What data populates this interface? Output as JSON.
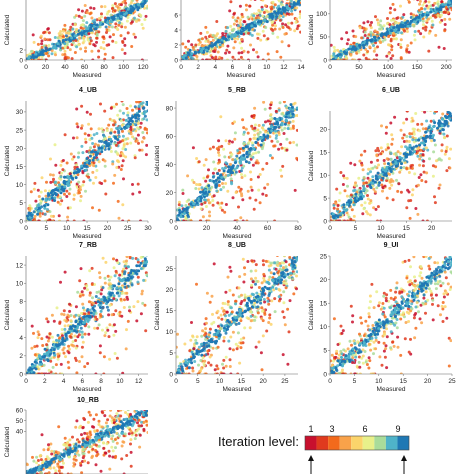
{
  "figure": {
    "colorbar": {
      "title": "Iteration level:",
      "ticks": [
        "1",
        "3",
        "6",
        "9"
      ],
      "colors": [
        "#c8102e",
        "#e03a1e",
        "#f36a1c",
        "#f9a24a",
        "#fbd46b",
        "#e8f08a",
        "#a9dc9a",
        "#4fb3c9",
        "#1f78b4"
      ]
    }
  },
  "chart_data": [
    {
      "type": "scatter",
      "title": "",
      "xlabel": "Measured",
      "ylabel": "Calculated",
      "xticks": [
        "0",
        "20",
        "40",
        "60",
        "80",
        "100",
        "120"
      ],
      "yticks": [
        "0",
        "2"
      ],
      "xlim": [
        0,
        125
      ],
      "ylim": [
        0,
        12
      ]
    },
    {
      "type": "scatter",
      "title": "",
      "xlabel": "Measured",
      "ylabel": "",
      "xticks": [
        "0",
        "2",
        "4",
        "6",
        "8",
        "10",
        "12",
        "14"
      ],
      "yticks": [
        "0",
        "2",
        "4",
        "6"
      ],
      "xlim": [
        0,
        14
      ],
      "ylim": [
        0,
        8
      ]
    },
    {
      "type": "scatter",
      "title": "",
      "xlabel": "Measured",
      "ylabel": "Calculated",
      "xticks": [
        "0",
        "50",
        "100",
        "150",
        "200"
      ],
      "yticks": [
        "0",
        "50",
        "100"
      ],
      "xlim": [
        0,
        210
      ],
      "ylim": [
        0,
        130
      ]
    },
    {
      "type": "scatter",
      "title": "4_UB",
      "xlabel": "Measured",
      "ylabel": "Calculated",
      "xticks": [
        "0",
        "5",
        "10",
        "15",
        "20",
        "25",
        "30"
      ],
      "yticks": [
        "0",
        "5",
        "10",
        "15",
        "20",
        "25",
        "30"
      ],
      "xlim": [
        0,
        30
      ],
      "ylim": [
        0,
        33
      ]
    },
    {
      "type": "scatter",
      "title": "5_RB",
      "xlabel": "Measured",
      "ylabel": "Calculated",
      "xticks": [
        "0",
        "20",
        "40",
        "60",
        "80"
      ],
      "yticks": [
        "0",
        "20",
        "40",
        "60",
        "80"
      ],
      "xlim": [
        0,
        80
      ],
      "ylim": [
        0,
        85
      ]
    },
    {
      "type": "scatter",
      "title": "6_UB",
      "xlabel": "Measured",
      "ylabel": "Calculated",
      "xticks": [
        "0",
        "5",
        "10",
        "15",
        "20"
      ],
      "yticks": [
        "0",
        "5",
        "10",
        "15",
        "20"
      ],
      "xlim": [
        0,
        24
      ],
      "ylim": [
        0,
        24
      ]
    },
    {
      "type": "scatter",
      "title": "7_RB",
      "xlabel": "Measured",
      "ylabel": "Calculated",
      "xticks": [
        "0",
        "2",
        "4",
        "6",
        "8",
        "10",
        "12"
      ],
      "yticks": [
        "0",
        "2",
        "4",
        "6",
        "8",
        "10",
        "12"
      ],
      "xlim": [
        0,
        13
      ],
      "ylim": [
        0,
        13
      ]
    },
    {
      "type": "scatter",
      "title": "8_UB",
      "xlabel": "Measured",
      "ylabel": "Calculated",
      "xticks": [
        "0",
        "5",
        "10",
        "15",
        "20",
        "25"
      ],
      "yticks": [
        "0",
        "5",
        "10",
        "15",
        "20",
        "25"
      ],
      "xlim": [
        0,
        28
      ],
      "ylim": [
        0,
        28
      ]
    },
    {
      "type": "scatter",
      "title": "9_UI",
      "xlabel": "Measured",
      "ylabel": "Calculated",
      "xticks": [
        "0",
        "5",
        "10",
        "15",
        "20",
        "25"
      ],
      "yticks": [
        "0",
        "5",
        "10",
        "15",
        "20",
        "25"
      ],
      "xlim": [
        0,
        25
      ],
      "ylim": [
        0,
        25
      ]
    },
    {
      "type": "scatter",
      "title": "10_RB",
      "xlabel": "",
      "ylabel": "Calculated",
      "xticks": [],
      "yticks": [
        "40",
        "50",
        "60"
      ],
      "xlim": [
        0,
        60
      ],
      "ylim": [
        0,
        60
      ]
    }
  ]
}
